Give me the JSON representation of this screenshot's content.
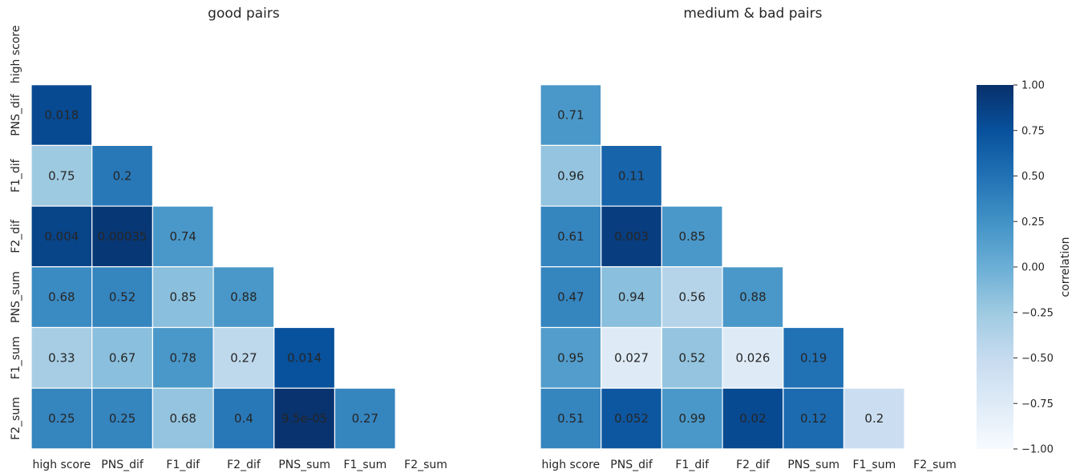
{
  "chart_data": [
    {
      "type": "heatmap",
      "title": "good pairs",
      "x_labels": [
        "high score",
        "PNS_dif",
        "F1_dif",
        "F2_dif",
        "PNS_sum",
        "F1_sum",
        "F2_sum"
      ],
      "y_labels": [
        "high score",
        "PNS_dif",
        "F1_dif",
        "F2_dif",
        "PNS_sum",
        "F1_sum",
        "F2_sum"
      ],
      "mask": "upper-triangle including diagonal",
      "correlations": [
        [
          null,
          null,
          null,
          null,
          null,
          null,
          null
        ],
        [
          0.8,
          null,
          null,
          null,
          null,
          null,
          null
        ],
        [
          -0.25,
          0.45,
          null,
          null,
          null,
          null,
          null
        ],
        [
          0.85,
          0.95,
          0.2,
          null,
          null,
          null,
          null
        ],
        [
          0.3,
          0.35,
          -0.15,
          0.2,
          null,
          null,
          null
        ],
        [
          -0.3,
          -0.15,
          0.2,
          -0.45,
          0.75,
          null,
          null
        ],
        [
          0.35,
          0.35,
          -0.2,
          0.45,
          0.98,
          0.35,
          null
        ]
      ],
      "annotations": [
        [
          null,
          null,
          null,
          null,
          null,
          null,
          null
        ],
        [
          "0.018",
          null,
          null,
          null,
          null,
          null,
          null
        ],
        [
          "0.75",
          "0.2",
          null,
          null,
          null,
          null,
          null
        ],
        [
          "0.004",
          "0.00035",
          "0.74",
          null,
          null,
          null,
          null
        ],
        [
          "0.68",
          "0.52",
          "0.85",
          "0.88",
          null,
          null,
          null
        ],
        [
          "0.33",
          "0.67",
          "0.78",
          "0.27",
          "0.014",
          null,
          null
        ],
        [
          "0.25",
          "0.25",
          "0.68",
          "0.4",
          "9.5e-05",
          "0.27",
          null
        ]
      ]
    },
    {
      "type": "heatmap",
      "title": "medium & bad pairs",
      "x_labels": [
        "high score",
        "PNS_dif",
        "F1_dif",
        "F2_dif",
        "PNS_sum",
        "F1_sum",
        "F2_sum"
      ],
      "y_labels": [
        "high score",
        "PNS_dif",
        "F1_dif",
        "F2_dif",
        "PNS_sum",
        "F1_sum",
        "F2_sum"
      ],
      "mask": "upper-triangle including diagonal",
      "correlations": [
        [
          null,
          null,
          null,
          null,
          null,
          null,
          null
        ],
        [
          0.2,
          null,
          null,
          null,
          null,
          null,
          null
        ],
        [
          -0.2,
          0.6,
          null,
          null,
          null,
          null,
          null
        ],
        [
          0.35,
          0.9,
          0.2,
          null,
          null,
          null,
          null
        ],
        [
          0.35,
          -0.15,
          -0.4,
          0.2,
          null,
          null,
          null
        ],
        [
          0.15,
          -0.75,
          -0.2,
          -0.75,
          0.5,
          null,
          null
        ],
        [
          0.35,
          0.7,
          0.2,
          0.8,
          0.55,
          -0.55,
          null
        ]
      ],
      "annotations": [
        [
          null,
          null,
          null,
          null,
          null,
          null,
          null
        ],
        [
          "0.71",
          null,
          null,
          null,
          null,
          null,
          null
        ],
        [
          "0.96",
          "0.11",
          null,
          null,
          null,
          null,
          null
        ],
        [
          "0.61",
          "0.003",
          "0.85",
          null,
          null,
          null,
          null
        ],
        [
          "0.47",
          "0.94",
          "0.56",
          "0.88",
          null,
          null,
          null
        ],
        [
          "0.95",
          "0.027",
          "0.52",
          "0.026",
          "0.19",
          null,
          null
        ],
        [
          "0.51",
          "0.052",
          "0.99",
          "0.02",
          "0.12",
          "0.2",
          null
        ]
      ]
    }
  ],
  "colorbar": {
    "label": "correlation",
    "range": [
      -1.0,
      1.0
    ],
    "ticks": [
      "1.00",
      "0.75",
      "0.50",
      "0.25",
      "0.00",
      "−0.25",
      "−0.50",
      "−0.75",
      "−1.00"
    ],
    "tick_values": [
      1.0,
      0.75,
      0.5,
      0.25,
      0.0,
      -0.25,
      -0.5,
      -0.75,
      -1.0
    ],
    "colormap": "Blues",
    "colormap_stops": [
      "#f7fbff",
      "#deebf7",
      "#c6dbef",
      "#9ecae1",
      "#6baed6",
      "#4292c6",
      "#2171b5",
      "#08519c",
      "#08306b"
    ]
  }
}
